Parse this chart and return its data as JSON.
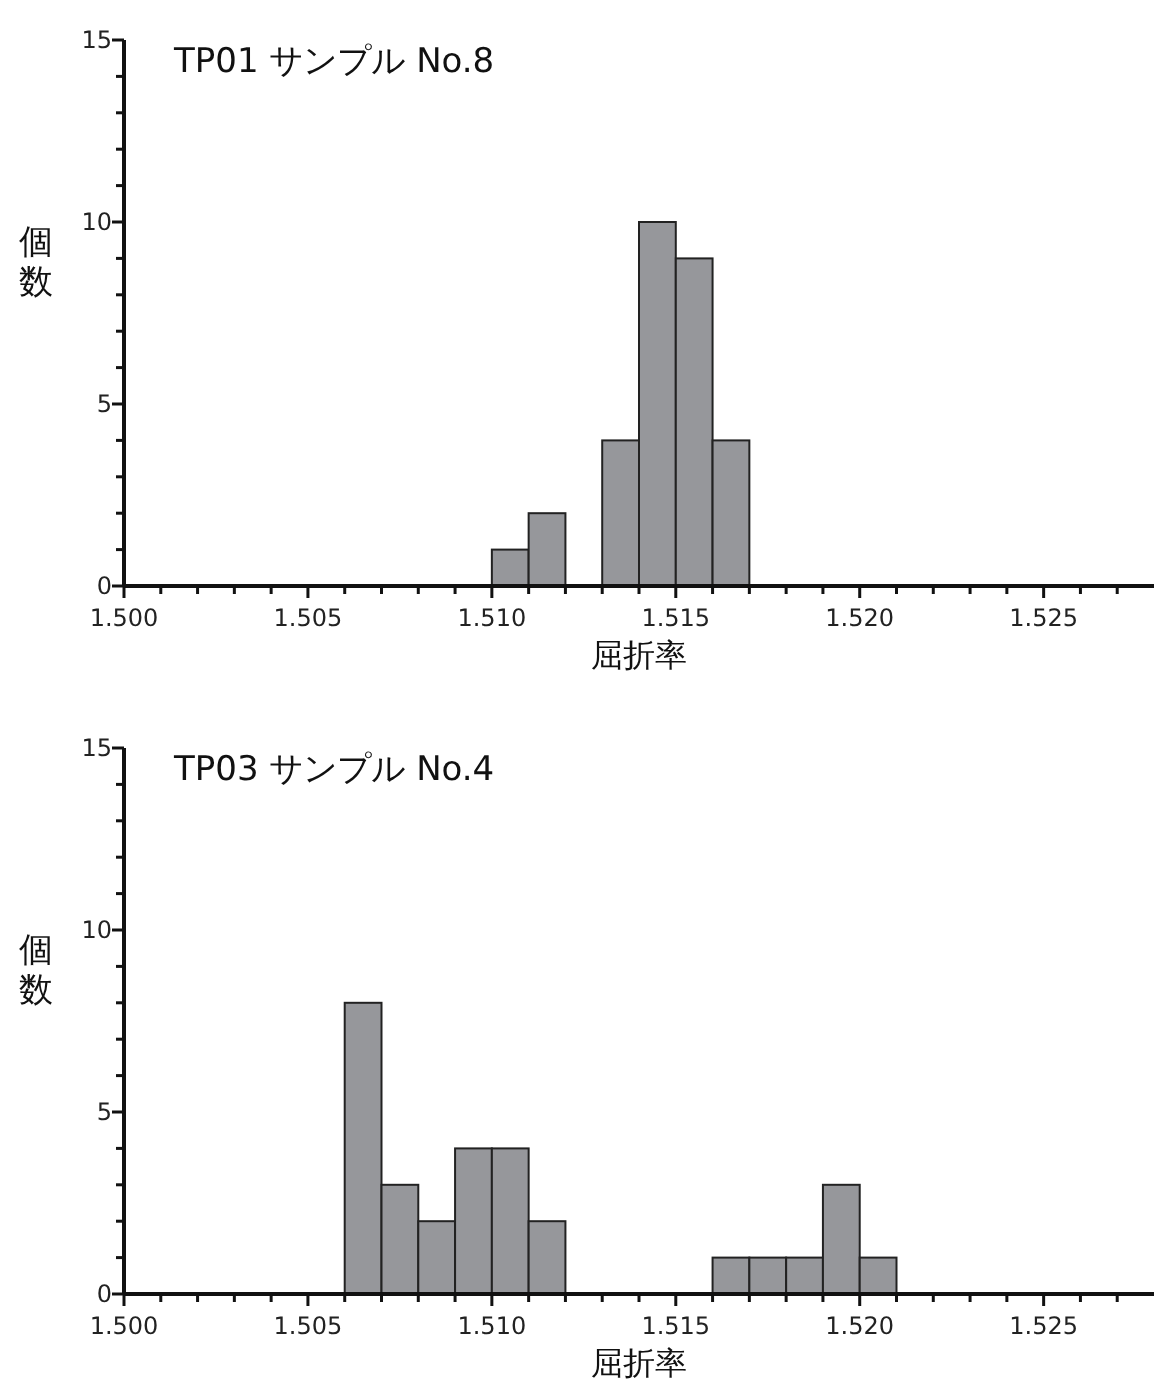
{
  "chart_data": [
    {
      "type": "histogram",
      "title": "TP01 サンプル No.8",
      "xlabel": "屈折率",
      "ylabel": "個数",
      "bins": [
        1.51,
        1.511,
        1.512,
        1.513,
        1.514,
        1.515,
        1.516,
        1.517
      ],
      "values": [
        1,
        2,
        0,
        4,
        10,
        9,
        4
      ],
      "color": "#96979b",
      "xlim": [
        1.5,
        1.528
      ],
      "xticks": [
        {
          "value": 1.5,
          "label": "1.500"
        },
        {
          "value": 1.501,
          "label": null
        },
        {
          "value": 1.502,
          "label": null
        },
        {
          "value": 1.503,
          "label": null
        },
        {
          "value": 1.504,
          "label": null
        },
        {
          "value": 1.505,
          "label": "1.505"
        },
        {
          "value": 1.506,
          "label": null
        },
        {
          "value": 1.507,
          "label": null
        },
        {
          "value": 1.508,
          "label": null
        },
        {
          "value": 1.509,
          "label": null
        },
        {
          "value": 1.51,
          "label": "1.510"
        },
        {
          "value": 1.511,
          "label": null
        },
        {
          "value": 1.512,
          "label": null
        },
        {
          "value": 1.513,
          "label": null
        },
        {
          "value": 1.514,
          "label": null
        },
        {
          "value": 1.515,
          "label": "1.515"
        },
        {
          "value": 1.516,
          "label": null
        },
        {
          "value": 1.517,
          "label": null
        },
        {
          "value": 1.518,
          "label": null
        },
        {
          "value": 1.519,
          "label": null
        },
        {
          "value": 1.52,
          "label": "1.520"
        },
        {
          "value": 1.521,
          "label": null
        },
        {
          "value": 1.522,
          "label": null
        },
        {
          "value": 1.523,
          "label": null
        },
        {
          "value": 1.524,
          "label": null
        },
        {
          "value": 1.525,
          "label": "1.525"
        },
        {
          "value": 1.526,
          "label": null
        },
        {
          "value": 1.527,
          "label": null
        }
      ],
      "ylim": [
        0,
        15
      ],
      "yticks": [
        0,
        {
          "value": 1,
          "label": null
        },
        {
          "value": 2,
          "label": null
        },
        {
          "value": 3,
          "label": null
        },
        {
          "value": 4,
          "label": null
        },
        5,
        {
          "value": 6,
          "label": null
        },
        {
          "value": 7,
          "label": null
        },
        {
          "value": 8,
          "label": null
        },
        {
          "value": 9,
          "label": null
        },
        10,
        {
          "value": 11,
          "label": null
        },
        {
          "value": 12,
          "label": null
        },
        {
          "value": 13,
          "label": null
        },
        {
          "value": 14,
          "label": null
        },
        15
      ]
    },
    {
      "type": "histogram",
      "title": "TP03 サンプル No.4",
      "xlabel": "屈折率",
      "ylabel": "個数",
      "bins": [
        1.506,
        1.507,
        1.508,
        1.509,
        1.51,
        1.511,
        1.512,
        1.513,
        1.514,
        1.515,
        1.516,
        1.517,
        1.518,
        1.519,
        1.52,
        1.521
      ],
      "values": [
        8,
        3,
        2,
        4,
        4,
        2,
        0,
        0,
        0,
        0,
        1,
        1,
        1,
        3,
        1
      ],
      "color": "#96979b",
      "xlim": [
        1.5,
        1.528
      ],
      "xticks": [
        {
          "value": 1.5,
          "label": "1.500"
        },
        {
          "value": 1.501,
          "label": null
        },
        {
          "value": 1.502,
          "label": null
        },
        {
          "value": 1.503,
          "label": null
        },
        {
          "value": 1.504,
          "label": null
        },
        {
          "value": 1.505,
          "label": "1.505"
        },
        {
          "value": 1.506,
          "label": null
        },
        {
          "value": 1.507,
          "label": null
        },
        {
          "value": 1.508,
          "label": null
        },
        {
          "value": 1.509,
          "label": null
        },
        {
          "value": 1.51,
          "label": "1.510"
        },
        {
          "value": 1.511,
          "label": null
        },
        {
          "value": 1.512,
          "label": null
        },
        {
          "value": 1.513,
          "label": null
        },
        {
          "value": 1.514,
          "label": null
        },
        {
          "value": 1.515,
          "label": "1.515"
        },
        {
          "value": 1.516,
          "label": null
        },
        {
          "value": 1.517,
          "label": null
        },
        {
          "value": 1.518,
          "label": null
        },
        {
          "value": 1.519,
          "label": null
        },
        {
          "value": 1.52,
          "label": "1.520"
        },
        {
          "value": 1.521,
          "label": null
        },
        {
          "value": 1.522,
          "label": null
        },
        {
          "value": 1.523,
          "label": null
        },
        {
          "value": 1.524,
          "label": null
        },
        {
          "value": 1.525,
          "label": "1.525"
        },
        {
          "value": 1.526,
          "label": null
        },
        {
          "value": 1.527,
          "label": null
        }
      ],
      "ylim": [
        0,
        15
      ],
      "yticks": [
        0,
        {
          "value": 1,
          "label": null
        },
        {
          "value": 2,
          "label": null
        },
        {
          "value": 3,
          "label": null
        },
        {
          "value": 4,
          "label": null
        },
        5,
        {
          "value": 6,
          "label": null
        },
        {
          "value": 7,
          "label": null
        },
        {
          "value": 8,
          "label": null
        },
        {
          "value": 9,
          "label": null
        },
        10,
        {
          "value": 11,
          "label": null
        },
        {
          "value": 12,
          "label": null
        },
        {
          "value": 13,
          "label": null
        },
        {
          "value": 14,
          "label": null
        },
        15
      ]
    }
  ]
}
